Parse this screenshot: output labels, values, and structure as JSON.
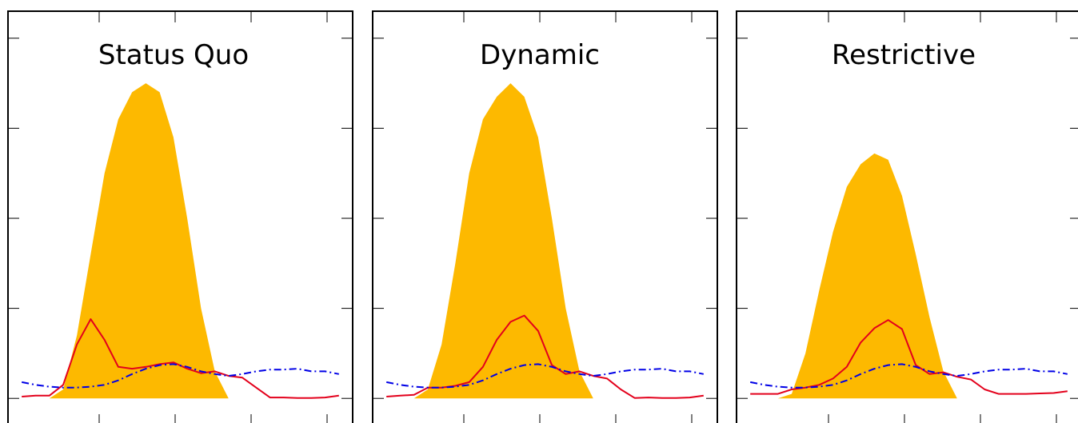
{
  "colors": {
    "area": "#FDB900",
    "red_series": "#E3001B",
    "blue_series": "#0000E6",
    "frame": "#000000"
  },
  "chart_data": [
    {
      "type": "area",
      "title": "Status Quo",
      "xlabel": "",
      "ylabel": "",
      "x": [
        0,
        0.5,
        1,
        1.5,
        2,
        2.5,
        3,
        3.5,
        4,
        4.5,
        5,
        5.5,
        6,
        6.5,
        7,
        7.5,
        8,
        8.5,
        9,
        9.5,
        10,
        10.5,
        11,
        11.5
      ],
      "xlim": [
        -0.5,
        12
      ],
      "ylim": [
        -0.3,
        4.3
      ],
      "grid": false,
      "legend": "none",
      "series": [
        {
          "style": "filled-area",
          "color": "#FDB900",
          "values": [
            0,
            0,
            0,
            0.1,
            0.7,
            1.6,
            2.5,
            3.1,
            3.4,
            3.5,
            3.4,
            2.9,
            2.0,
            1.0,
            0.3,
            0,
            0,
            0,
            0,
            0,
            0,
            0,
            0,
            0
          ]
        },
        {
          "style": "solid",
          "color": "#E3001B",
          "values": [
            0.02,
            0.03,
            0.03,
            0.15,
            0.6,
            0.88,
            0.65,
            0.35,
            0.33,
            0.35,
            0.38,
            0.4,
            0.33,
            0.28,
            0.3,
            0.25,
            0.23,
            0.12,
            0.01,
            0.01,
            0.005,
            0.005,
            0.01,
            0.03
          ]
        },
        {
          "style": "dash-dot",
          "color": "#0000E6",
          "values": [
            0.18,
            0.15,
            0.13,
            0.12,
            0.12,
            0.13,
            0.15,
            0.2,
            0.27,
            0.33,
            0.37,
            0.38,
            0.35,
            0.3,
            0.27,
            0.25,
            0.27,
            0.3,
            0.32,
            0.32,
            0.33,
            0.3,
            0.3,
            0.27
          ]
        }
      ]
    },
    {
      "type": "area",
      "title": "Dynamic",
      "xlabel": "",
      "ylabel": "",
      "x": [
        0,
        0.5,
        1,
        1.5,
        2,
        2.5,
        3,
        3.5,
        4,
        4.5,
        5,
        5.5,
        6,
        6.5,
        7,
        7.5,
        8,
        8.5,
        9,
        9.5,
        10,
        10.5,
        11,
        11.5
      ],
      "xlim": [
        -0.5,
        12
      ],
      "ylim": [
        -0.3,
        4.3
      ],
      "grid": false,
      "legend": "none",
      "series": [
        {
          "style": "filled-area",
          "color": "#FDB900",
          "values": [
            0,
            0,
            0,
            0.1,
            0.6,
            1.5,
            2.5,
            3.1,
            3.35,
            3.5,
            3.35,
            2.9,
            2.0,
            1.0,
            0.3,
            0,
            0,
            0,
            0,
            0,
            0,
            0,
            0,
            0
          ]
        },
        {
          "style": "solid",
          "color": "#E3001B",
          "values": [
            0.02,
            0.03,
            0.04,
            0.12,
            0.12,
            0.14,
            0.18,
            0.35,
            0.65,
            0.85,
            0.92,
            0.75,
            0.37,
            0.27,
            0.3,
            0.25,
            0.22,
            0.1,
            0.005,
            0.01,
            0.005,
            0.005,
            0.01,
            0.03
          ]
        },
        {
          "style": "dash-dot",
          "color": "#0000E6",
          "values": [
            0.18,
            0.15,
            0.13,
            0.12,
            0.12,
            0.13,
            0.15,
            0.2,
            0.27,
            0.33,
            0.37,
            0.38,
            0.35,
            0.3,
            0.27,
            0.25,
            0.27,
            0.3,
            0.32,
            0.32,
            0.33,
            0.3,
            0.3,
            0.27
          ]
        }
      ]
    },
    {
      "type": "area",
      "title": "Restrictive",
      "xlabel": "",
      "ylabel": "",
      "x": [
        0,
        0.5,
        1,
        1.5,
        2,
        2.5,
        3,
        3.5,
        4,
        4.5,
        5,
        5.5,
        6,
        6.5,
        7,
        7.5,
        8,
        8.5,
        9,
        9.5,
        10,
        10.5,
        11,
        11.5
      ],
      "xlim": [
        -0.5,
        12
      ],
      "ylim": [
        -0.3,
        4.3
      ],
      "grid": false,
      "legend": "none",
      "series": [
        {
          "style": "filled-area",
          "color": "#FDB900",
          "values": [
            0,
            0,
            0,
            0.05,
            0.5,
            1.2,
            1.85,
            2.35,
            2.6,
            2.72,
            2.65,
            2.25,
            1.6,
            0.9,
            0.3,
            0,
            0,
            0,
            0,
            0,
            0,
            0,
            0,
            0
          ]
        },
        {
          "style": "solid",
          "color": "#E3001B",
          "values": [
            0.05,
            0.05,
            0.05,
            0.1,
            0.12,
            0.15,
            0.22,
            0.35,
            0.62,
            0.78,
            0.87,
            0.77,
            0.37,
            0.27,
            0.29,
            0.24,
            0.21,
            0.1,
            0.05,
            0.05,
            0.05,
            0.055,
            0.06,
            0.08
          ]
        },
        {
          "style": "dash-dot",
          "color": "#0000E6",
          "values": [
            0.18,
            0.15,
            0.13,
            0.12,
            0.12,
            0.13,
            0.15,
            0.2,
            0.27,
            0.33,
            0.37,
            0.38,
            0.35,
            0.3,
            0.27,
            0.25,
            0.27,
            0.3,
            0.32,
            0.32,
            0.33,
            0.3,
            0.3,
            0.27
          ]
        }
      ]
    }
  ]
}
